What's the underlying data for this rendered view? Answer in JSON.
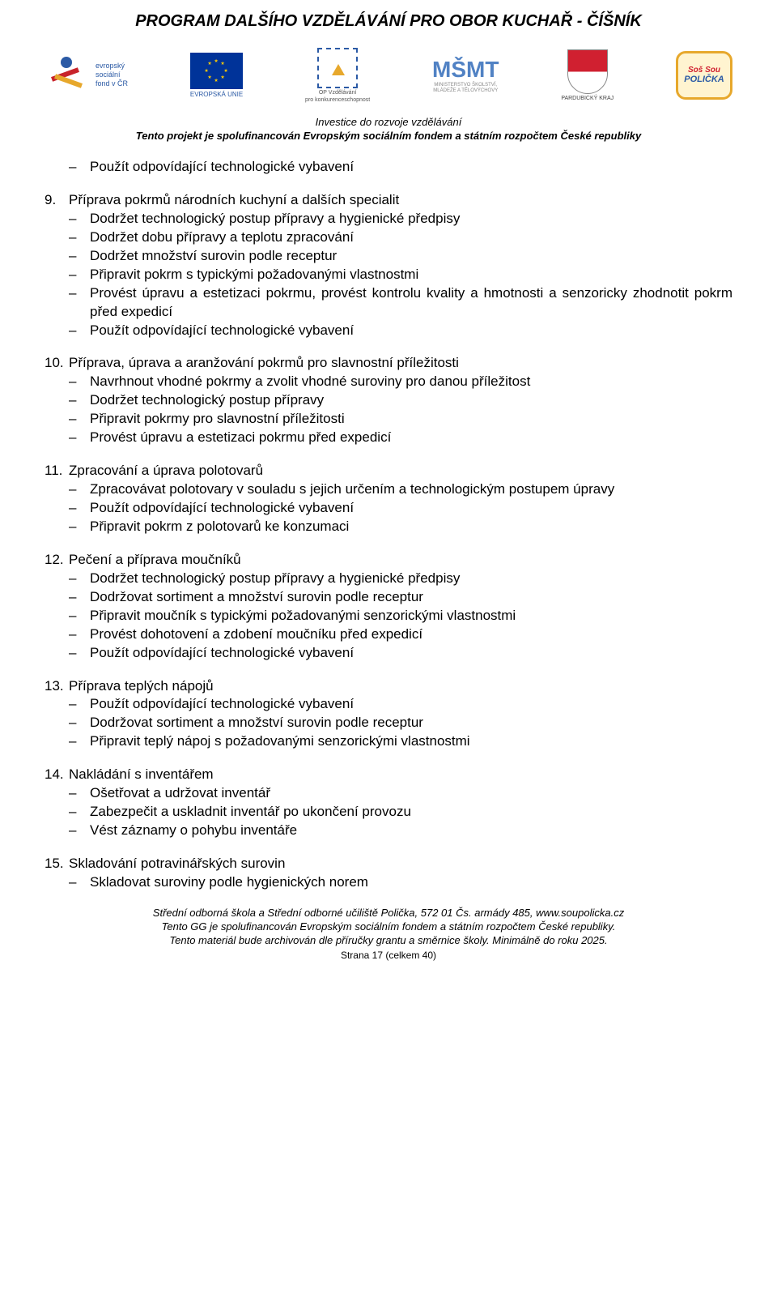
{
  "header": {
    "title": "PROGRAM DALŠÍHO VZDĚLÁVÁNÍ PRO OBOR KUCHAŘ - ČÍŠNÍK",
    "subtitle": "Investice do rozvoje vzdělávání",
    "subtitle2": "Tento projekt je spolufinancován Evropským sociálním fondem a státním rozpočtem České republiky",
    "logos": {
      "esf": {
        "line1": "evropský",
        "line2": "sociální",
        "line3": "fond v ČR"
      },
      "eu": {
        "label": "EVROPSKÁ UNIE"
      },
      "op": {
        "line1": "OP Vzdělávání",
        "line2": "pro konkurenceschopnost"
      },
      "msmt": {
        "icon": "MŠMT",
        "line1": "MINISTERSTVO ŠKOLSTVÍ,",
        "line2": "MLÁDEŽE A TĚLOVÝCHOVY"
      },
      "pardub": {
        "label": "PARDUBICKÝ KRAJ"
      },
      "policka": {
        "top": "Soš Sou",
        "bottom": "POLIČKA"
      }
    }
  },
  "intro_item": "Použít odpovídající technologické vybavení",
  "sections": [
    {
      "num": "9.",
      "title": "Příprava pokrmů národních kuchyní a dalších specialit",
      "items": [
        "Dodržet technologický postup přípravy a hygienické předpisy",
        "Dodržet dobu přípravy a teplotu zpracování",
        "Dodržet množství surovin podle receptur",
        "Připravit pokrm s typickými požadovanými vlastnostmi",
        "Provést úpravu a estetizaci pokrmu, provést kontrolu kvality a hmotnosti a senzoricky zhodnotit pokrm před expedicí",
        "Použít odpovídající technologické vybavení"
      ]
    },
    {
      "num": "10.",
      "title": "Příprava, úprava a aranžování pokrmů pro slavnostní příležitosti",
      "items": [
        "Navrhnout vhodné pokrmy a zvolit vhodné suroviny pro danou příležitost",
        "Dodržet technologický postup přípravy",
        "Připravit pokrmy pro slavnostní příležitosti",
        "Provést úpravu a estetizaci pokrmu před expedicí"
      ]
    },
    {
      "num": "11.",
      "title": "Zpracování a úprava polotovarů",
      "items": [
        "Zpracovávat polotovary v souladu s jejich určením a technologickým postupem úpravy",
        "Použít odpovídající technologické vybavení",
        "Připravit pokrm z polotovarů ke konzumaci"
      ]
    },
    {
      "num": "12.",
      "title": "Pečení a příprava moučníků",
      "items": [
        "Dodržet technologický postup přípravy a hygienické předpisy",
        "Dodržovat sortiment a množství surovin podle receptur",
        "Připravit moučník s typickými požadovanými senzorickými vlastnostmi",
        "Provést dohotovení a zdobení moučníku před expedicí",
        "Použít odpovídající technologické vybavení"
      ]
    },
    {
      "num": "13.",
      "title": "Příprava teplých nápojů",
      "items": [
        "Použít odpovídající technologické vybavení",
        "Dodržovat sortiment a množství surovin podle receptur",
        "Připravit teplý nápoj s požadovanými senzorickými vlastnostmi"
      ]
    },
    {
      "num": "14.",
      "title": "Nakládání s inventářem",
      "items": [
        "Ošetřovat a udržovat inventář",
        "Zabezpečit a uskladnit inventář po ukončení provozu",
        "Vést záznamy o pohybu inventáře"
      ]
    },
    {
      "num": "15.",
      "title": "Skladování potravinářských surovin",
      "items": [
        "Skladovat suroviny podle hygienických norem"
      ]
    }
  ],
  "footer": {
    "line1": "Střední odborná škola a Střední odborné učiliště Polička, 572 01 Čs. armády 485, www.soupolicka.cz",
    "line2": "Tento GG je spolufinancován Evropským sociálním fondem a státním rozpočtem České republiky.",
    "line3": "Tento materiál bude archivován dle příručky grantu a směrnice školy. Minimálně do roku 2025.",
    "page": "Strana 17 (celkem 40)"
  }
}
